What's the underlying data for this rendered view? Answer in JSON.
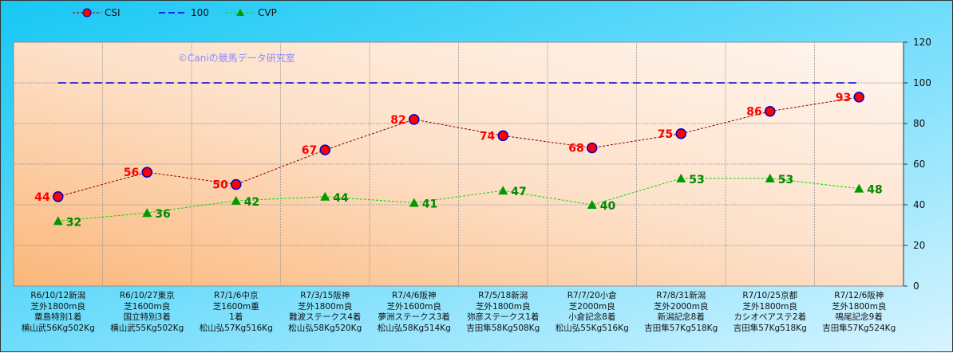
{
  "chart_data": {
    "type": "line",
    "watermark": "©Caniの競馬データ研究室",
    "categories": [
      [
        "R6/10/12新潟",
        "芝外1800m良",
        "粟島特別1着",
        "横山武56Kg502Kg"
      ],
      [
        "R6/10/27東京",
        "芝1600m良",
        "国立特別3着",
        "横山武55Kg502Kg"
      ],
      [
        "R7/1/6中京",
        "芝1600m重",
        "1着",
        "松山弘57Kg516Kg"
      ],
      [
        "R7/3/15阪神",
        "芝外1800m良",
        "難波ステークス4着",
        "松山弘58Kg520Kg"
      ],
      [
        "R7/4/6阪神",
        "芝外1600m良",
        "夢洲ステークス3着",
        "松山弘58Kg514Kg"
      ],
      [
        "R7/5/18新潟",
        "芝外1800m良",
        "弥彦ステークス1着",
        "吉田隼58Kg508Kg"
      ],
      [
        "R7/7/20小倉",
        "芝2000m良",
        "小倉記念8着",
        "松山弘55Kg516Kg"
      ],
      [
        "R7/8/31新潟",
        "芝外2000m良",
        "新潟記念8着",
        "吉田隼57Kg518Kg"
      ],
      [
        "R7/10/25京都",
        "芝外1800m良",
        "カシオペアステ2着",
        "吉田隼57Kg518Kg"
      ],
      [
        "R7/12/6阪神",
        "芝外1800m良",
        "鳴尾記念9着",
        "吉田隼57Kg524Kg"
      ]
    ],
    "series": [
      {
        "name": "CSI",
        "values": [
          44,
          56,
          50,
          67,
          82,
          74,
          68,
          75,
          86,
          93
        ],
        "color": "#8b0000",
        "marker": "#ff0000",
        "label_color": "#ff0000"
      },
      {
        "name": "100",
        "values": [
          100,
          100,
          100,
          100,
          100,
          100,
          100,
          100,
          100,
          100
        ],
        "color": "#0000cc"
      },
      {
        "name": "CVP",
        "values": [
          32,
          36,
          42,
          44,
          41,
          47,
          40,
          53,
          53,
          48
        ],
        "color": "#00dd00",
        "marker": "#009900",
        "label_color": "#008800"
      }
    ],
    "yticks": [
      0,
      20,
      40,
      60,
      80,
      100,
      120
    ],
    "ylim": [
      0,
      120
    ],
    "y_axis_side": "right",
    "grid": true,
    "legend": "top-left"
  }
}
